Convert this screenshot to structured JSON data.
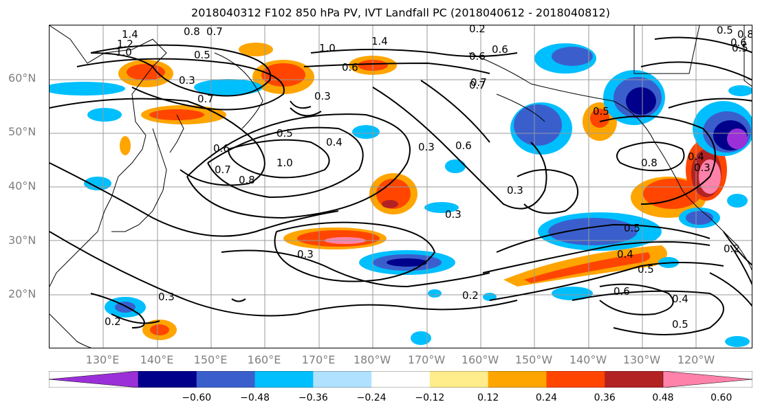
{
  "title": "2018040312 F102 850 hPa PV, IVT Landfall PC (2018040612 - 2018040812)",
  "lat_labels": [
    "60°N",
    "50°N",
    "40°N",
    "30°N",
    "20°N"
  ],
  "lon_labels": [
    "130°E",
    "140°E",
    "150°E",
    "160°E",
    "170°E",
    "180°W",
    "170°W",
    "160°W",
    "150°W",
    "140°W",
    "130°W",
    "120°W"
  ],
  "colorbar": {
    "ticks": [
      "−0.60",
      "−0.48",
      "−0.36",
      "−0.24",
      "−0.12",
      "0.12",
      "0.24",
      "0.36",
      "0.48",
      "0.60"
    ],
    "colors": [
      "#9b30d9",
      "#00008b",
      "#3a5fcd",
      "#00bfff",
      "#b0e2ff",
      "#ffffff",
      "#ffec8b",
      "#ffa500",
      "#ff4500",
      "#b22222",
      "#ff82ab"
    ]
  },
  "contour_labels": [
    "1.4",
    "1.2",
    "1.0",
    "0.8",
    "0.7",
    "0.5",
    "0.3",
    "0.7",
    "1.0",
    "1.4",
    "0.6",
    "0.6",
    "0.7",
    "0.3",
    "0.4",
    "0.5",
    "0.6",
    "1.0",
    "0.7",
    "0.8",
    "0.6",
    "0.3",
    "0.5",
    "0.3",
    "0.3",
    "0.2",
    "0.3",
    "0.2",
    "0.3",
    "0.5",
    "0.4",
    "0.5",
    "0.6",
    "0.4",
    "0.5",
    "0.8",
    "0.4",
    "0.3",
    "0.5",
    "0.5",
    "0.7",
    "0.6",
    "0.8",
    "0.2",
    "0.6",
    "0.2"
  ]
}
